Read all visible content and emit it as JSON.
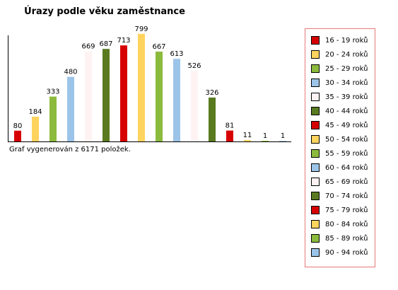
{
  "footnote": "Graf vygenerován z 6171 položek.",
  "chart_data": {
    "type": "bar",
    "title": "Úrazy podle věku zaměstnance",
    "xlabel": "",
    "ylabel": "",
    "ylim": [
      0,
      840
    ],
    "grid": false,
    "legend_position": "right",
    "categories": [
      "16 - 19 roků",
      "20 - 24 roků",
      "25 - 29 roků",
      "30 - 34 roků",
      "35 - 39 roků",
      "40 - 44 roků",
      "45 - 49 roků",
      "50 - 54 roků",
      "55 - 59 roků",
      "60 - 64 roků",
      "65 - 69 roků",
      "70 - 74 roků",
      "75 - 79 roků",
      "80 - 84 roků",
      "85 - 89 roků",
      "90 - 94 roků"
    ],
    "values": [
      80,
      184,
      333,
      480,
      669,
      687,
      713,
      799,
      667,
      613,
      526,
      326,
      81,
      11,
      1,
      1
    ],
    "colors": [
      "#d60000",
      "#ffd45e",
      "#8cba3c",
      "#9cc4e8",
      "#fff2f2",
      "#5a7a20",
      "#d60000",
      "#ffd45e",
      "#8cba3c",
      "#9cc4e8",
      "#fff2f2",
      "#5a7a20",
      "#d60000",
      "#ffd45e",
      "#8cba3c",
      "#9cc4e8"
    ]
  }
}
